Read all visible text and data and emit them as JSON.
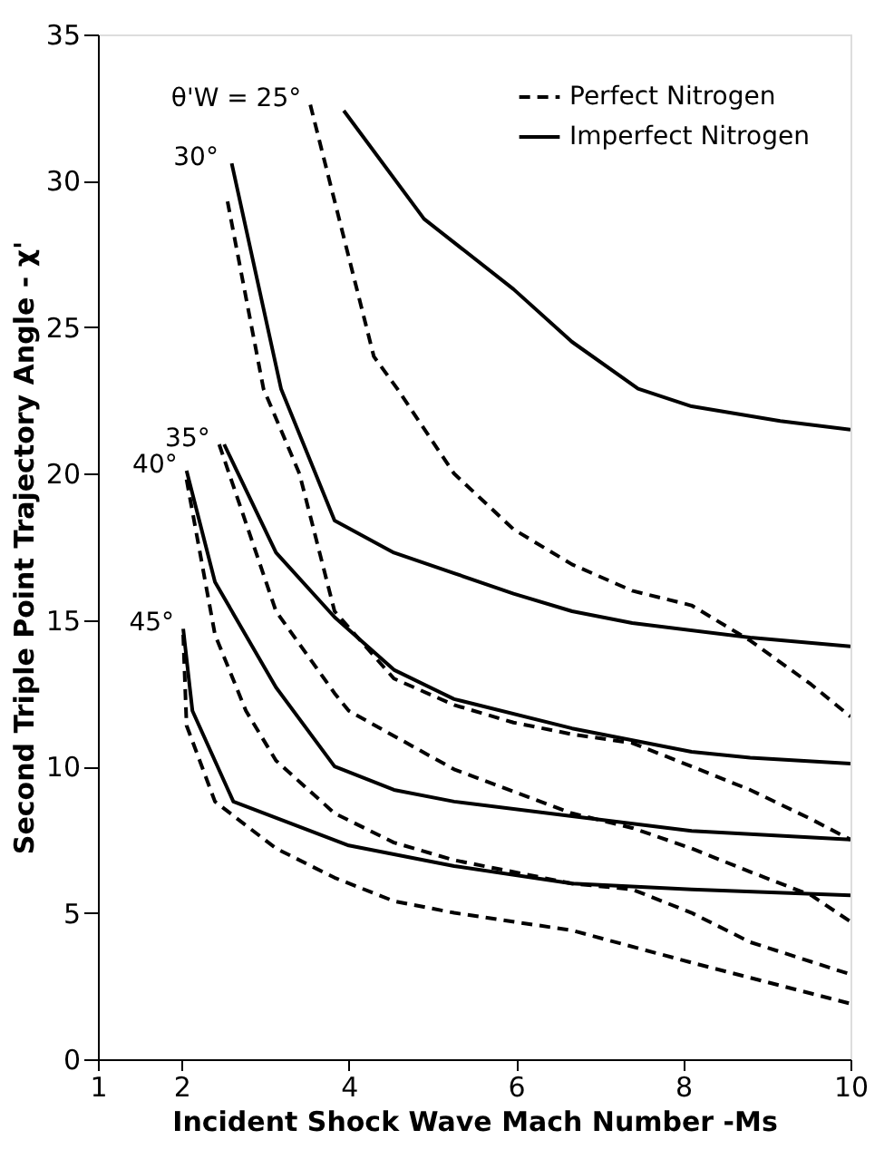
{
  "chart_data": {
    "type": "line",
    "xlabel": "Incident Shock Wave Mach Number -Ms",
    "ylabel": "Second Triple Point Trajectory Angle - χ'",
    "xlim": [
      1,
      10
    ],
    "xticks": [
      1,
      2,
      4,
      6,
      8,
      10
    ],
    "ylim": [
      0,
      35
    ],
    "yticks": [
      0,
      5,
      10,
      15,
      20,
      25,
      30,
      35
    ],
    "grid": false,
    "legend": "top right",
    "marker": "none",
    "series": [
      {
        "name": "Perfect Nitrogen",
        "color": "#000000",
        "line_style": "dashed",
        "x": [
          3.54,
          4.3,
          4.58,
          5.26,
          5.97,
          6.67,
          7.39,
          8.1,
          8.8,
          9.53,
          10
        ],
        "values": [
          32.6,
          24.0,
          22.9,
          20.0,
          18.1,
          16.9,
          16.0,
          15.5,
          14.3,
          12.8,
          11.7
        ]
      },
      {
        "name": "Imperfect Nitrogen",
        "color": "#000000",
        "line_style": "solid",
        "x": [
          3.94,
          4.9,
          5.97,
          6.67,
          7.46,
          8.1,
          9.16,
          10
        ],
        "values": [
          32.4,
          28.7,
          26.3,
          24.5,
          22.9,
          22.3,
          21.8,
          21.5
        ]
      },
      {
        "color": "#000000",
        "line_style": "dashed",
        "x": [
          2.55,
          2.98,
          3.41,
          3.83,
          4.54,
          5.26,
          5.97,
          6.67,
          7.39,
          8.1,
          8.8,
          9.53,
          10
        ],
        "values": [
          29.3,
          22.9,
          20.0,
          15.3,
          13.0,
          12.1,
          11.5,
          11.1,
          10.8,
          10.0,
          9.2,
          8.2,
          7.5
        ]
      },
      {
        "color": "#000000",
        "line_style": "solid",
        "x": [
          2.6,
          3.19,
          3.83,
          4.54,
          5.26,
          5.97,
          6.67,
          7.39,
          8.8,
          10
        ],
        "values": [
          30.6,
          22.9,
          18.4,
          17.3,
          16.6,
          15.9,
          15.3,
          14.9,
          14.4,
          14.1
        ]
      },
      {
        "color": "#000000",
        "line_style": "dashed",
        "x": [
          2.45,
          3.13,
          3.83,
          4.0,
          5.26,
          6.67,
          7.39,
          8.1,
          8.8,
          9.53,
          10
        ],
        "values": [
          21.0,
          15.3,
          12.5,
          11.9,
          9.9,
          8.4,
          7.9,
          7.2,
          6.4,
          5.6,
          4.7
        ]
      },
      {
        "color": "#000000",
        "line_style": "solid",
        "x": [
          2.51,
          3.13,
          3.83,
          4.54,
          5.26,
          6.67,
          8.1,
          8.8,
          10
        ],
        "values": [
          21.0,
          17.3,
          15.1,
          13.3,
          12.3,
          11.3,
          10.5,
          10.3,
          10.1
        ]
      },
      {
        "color": "#000000",
        "line_style": "dashed",
        "x": [
          2.06,
          2.4,
          2.77,
          3.13,
          3.83,
          4.54,
          5.26,
          6.67,
          7.39,
          8.1,
          8.8,
          10
        ],
        "values": [
          19.8,
          14.5,
          11.9,
          10.2,
          8.4,
          7.4,
          6.8,
          6.0,
          5.8,
          5.0,
          4.0,
          2.9
        ]
      },
      {
        "color": "#000000",
        "line_style": "solid",
        "x": [
          2.06,
          2.4,
          3.13,
          3.83,
          4.54,
          5.26,
          6.67,
          8.1,
          10
        ],
        "values": [
          20.1,
          16.3,
          12.7,
          10.0,
          9.2,
          8.8,
          8.3,
          7.8,
          7.5
        ]
      },
      {
        "color": "#000000",
        "line_style": "dashed",
        "x": [
          2.02,
          2.06,
          2.4,
          3.13,
          3.83,
          4.54,
          5.26,
          6.67,
          8.1,
          10
        ],
        "values": [
          14.5,
          11.4,
          8.8,
          7.2,
          6.2,
          5.4,
          5.0,
          4.4,
          3.3,
          1.9
        ]
      },
      {
        "color": "#000000",
        "line_style": "solid",
        "x": [
          2.02,
          2.13,
          2.62,
          4.0,
          5.26,
          6.67,
          8.1,
          10
        ],
        "values": [
          14.7,
          11.9,
          8.8,
          7.3,
          6.6,
          6.0,
          5.8,
          5.6
        ]
      }
    ],
    "annotations": [
      "θ'W = 25°",
      "30°",
      "35°",
      "40°",
      "45°"
    ]
  }
}
